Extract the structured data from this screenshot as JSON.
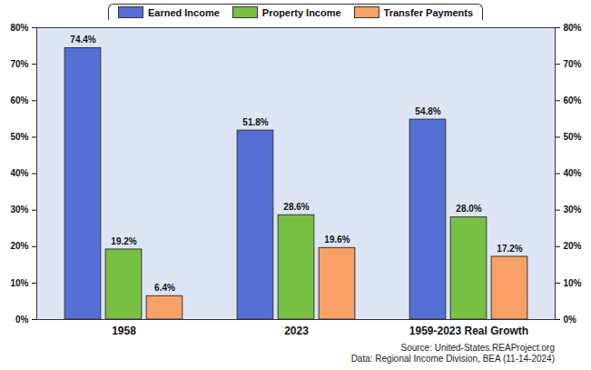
{
  "chart_data": {
    "type": "bar",
    "categories": [
      "1958",
      "2023",
      "1959-2023 Real Growth"
    ],
    "series": [
      {
        "name": "Earned Income",
        "color": "#5470d6",
        "values": [
          74.4,
          51.8,
          54.8
        ],
        "value_labels": [
          "74.4%",
          "51.8%",
          "54.8%"
        ]
      },
      {
        "name": "Property Income",
        "color": "#78c043",
        "values": [
          19.2,
          28.6,
          28.0
        ],
        "value_labels": [
          "19.2%",
          "28.6%",
          "28.0%"
        ]
      },
      {
        "name": "Transfer Payments",
        "color": "#f8a066",
        "values": [
          6.4,
          19.6,
          17.2
        ],
        "value_labels": [
          "6.4%",
          "19.6%",
          "17.2%"
        ]
      }
    ],
    "ylim": [
      0,
      80
    ],
    "yticks": [
      {
        "value": 0,
        "label": "0%"
      },
      {
        "value": 10,
        "label": "10%"
      },
      {
        "value": 20,
        "label": "20%"
      },
      {
        "value": 30,
        "label": "30%"
      },
      {
        "value": 40,
        "label": "40%"
      },
      {
        "value": 50,
        "label": "50%"
      },
      {
        "value": 60,
        "label": "60%"
      },
      {
        "value": 70,
        "label": "70%"
      },
      {
        "value": 80,
        "label": "80%"
      }
    ],
    "grid": false,
    "legend": "top",
    "data_labels": true,
    "annotations": [
      "Source: United-States.REAProject.org",
      "Data: Regional Income Division, BEA (11-14-2024)"
    ]
  }
}
